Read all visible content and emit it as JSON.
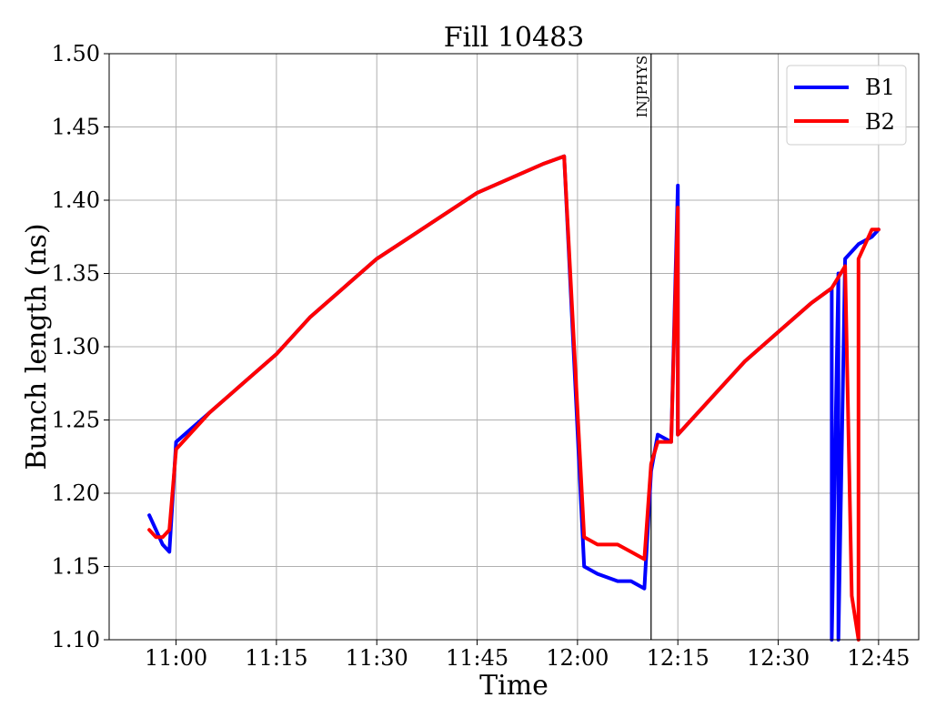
{
  "chart_data": {
    "type": "line",
    "title": "Fill 10483",
    "xlabel": "Time",
    "ylabel": "Bunch length (ns)",
    "xlim": [
      "10:50",
      "12:51"
    ],
    "ylim": [
      1.1,
      1.5
    ],
    "x_ticks": [
      "11:00",
      "11:15",
      "11:30",
      "11:45",
      "12:00",
      "12:15",
      "12:30",
      "12:45"
    ],
    "y_ticks": [
      "1.10",
      "1.15",
      "1.20",
      "1.25",
      "1.30",
      "1.35",
      "1.40",
      "1.45",
      "1.50"
    ],
    "grid": true,
    "legend_position": "top-right",
    "annotations": [
      {
        "label": "INJPHYS",
        "x": "12:11"
      }
    ],
    "series": [
      {
        "name": "B1",
        "color": "#0000ff",
        "x": [
          "10:56",
          "10:57",
          "10:58",
          "10:59",
          "11:00",
          "11:05",
          "11:10",
          "11:15",
          "11:20",
          "11:25",
          "11:30",
          "11:35",
          "11:40",
          "11:45",
          "11:50",
          "11:55",
          "11:58",
          "12:01",
          "12:03",
          "12:06",
          "12:08",
          "12:10",
          "12:11",
          "12:12",
          "12:14",
          "12:15",
          "12:15",
          "12:16",
          "12:20",
          "12:25",
          "12:30",
          "12:35",
          "12:38",
          "12:38",
          "12:39",
          "12:39",
          "12:40",
          "12:42",
          "12:44",
          "12:45"
        ],
        "y": [
          1.185,
          1.175,
          1.165,
          1.16,
          1.235,
          1.255,
          1.275,
          1.295,
          1.32,
          1.34,
          1.36,
          1.375,
          1.39,
          1.405,
          1.415,
          1.425,
          1.43,
          1.15,
          1.145,
          1.14,
          1.14,
          1.135,
          1.215,
          1.24,
          1.235,
          1.41,
          1.24,
          1.245,
          1.265,
          1.29,
          1.31,
          1.33,
          1.34,
          1.1,
          1.35,
          1.1,
          1.36,
          1.37,
          1.375,
          1.38
        ]
      },
      {
        "name": "B2",
        "color": "#ff0000",
        "x": [
          "10:56",
          "10:57",
          "10:58",
          "10:59",
          "11:00",
          "11:05",
          "11:10",
          "11:15",
          "11:20",
          "11:25",
          "11:30",
          "11:35",
          "11:40",
          "11:45",
          "11:50",
          "11:55",
          "11:58",
          "12:01",
          "12:03",
          "12:06",
          "12:08",
          "12:10",
          "12:11",
          "12:12",
          "12:14",
          "12:15",
          "12:15",
          "12:16",
          "12:20",
          "12:25",
          "12:30",
          "12:35",
          "12:38",
          "12:40",
          "12:41",
          "12:42",
          "12:42",
          "12:43",
          "12:44",
          "12:45"
        ],
        "y": [
          1.175,
          1.17,
          1.17,
          1.175,
          1.23,
          1.255,
          1.275,
          1.295,
          1.32,
          1.34,
          1.36,
          1.375,
          1.39,
          1.405,
          1.415,
          1.425,
          1.43,
          1.17,
          1.165,
          1.165,
          1.16,
          1.155,
          1.22,
          1.235,
          1.235,
          1.395,
          1.24,
          1.245,
          1.265,
          1.29,
          1.31,
          1.33,
          1.34,
          1.355,
          1.13,
          1.1,
          1.36,
          1.37,
          1.38,
          1.38
        ]
      }
    ]
  }
}
